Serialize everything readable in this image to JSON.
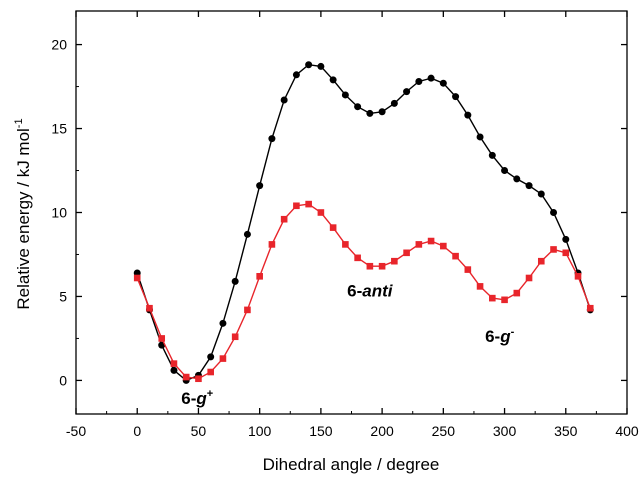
{
  "chart_data": {
    "type": "line",
    "title": "",
    "xlabel": "Dihedral angle / degree",
    "ylabel_main": "Relative energy / kJ mol",
    "ylabel_sup": "-1",
    "xlim": [
      -50,
      400
    ],
    "ylim": [
      -2,
      22
    ],
    "xticks": [
      -50,
      0,
      50,
      100,
      150,
      200,
      250,
      300,
      350,
      400
    ],
    "yticks": [
      0,
      5,
      10,
      15,
      20
    ],
    "grid": false,
    "legend": "none",
    "series": [
      {
        "color": "#000000",
        "marker": "circle",
        "x": [
          0,
          10,
          20,
          30,
          40,
          50,
          60,
          70,
          80,
          90,
          100,
          110,
          120,
          130,
          140,
          150,
          160,
          170,
          180,
          190,
          200,
          210,
          220,
          230,
          240,
          250,
          260,
          270,
          280,
          290,
          300,
          310,
          320,
          330,
          340,
          350,
          360,
          370
        ],
        "y": [
          6.4,
          4.2,
          2.1,
          0.6,
          0.0,
          0.3,
          1.4,
          3.4,
          5.9,
          8.7,
          11.6,
          14.4,
          16.7,
          18.2,
          18.8,
          18.7,
          17.9,
          17.0,
          16.3,
          15.9,
          16.0,
          16.5,
          17.2,
          17.8,
          18.0,
          17.7,
          16.9,
          15.8,
          14.5,
          13.4,
          12.5,
          12.0,
          11.6,
          11.1,
          10.0,
          8.4,
          6.4,
          4.2
        ]
      },
      {
        "color": "#e8252b",
        "marker": "square",
        "x": [
          0,
          10,
          20,
          30,
          40,
          50,
          60,
          70,
          80,
          90,
          100,
          110,
          120,
          130,
          140,
          150,
          160,
          170,
          180,
          190,
          200,
          210,
          220,
          230,
          240,
          250,
          260,
          270,
          280,
          290,
          300,
          310,
          320,
          330,
          340,
          350,
          360,
          370
        ],
        "y": [
          6.1,
          4.3,
          2.5,
          1.0,
          0.2,
          0.1,
          0.5,
          1.3,
          2.6,
          4.2,
          6.2,
          8.1,
          9.6,
          10.4,
          10.5,
          10.0,
          9.1,
          8.1,
          7.3,
          6.8,
          6.8,
          7.1,
          7.6,
          8.1,
          8.3,
          8.0,
          7.4,
          6.6,
          5.6,
          4.9,
          4.8,
          5.2,
          6.1,
          7.1,
          7.8,
          7.6,
          6.2,
          4.3
        ]
      }
    ],
    "annotations": [
      {
        "parts": [
          {
            "t": "6-",
            "style": "b"
          },
          {
            "t": "g",
            "style": "bi"
          },
          {
            "t": "+",
            "style": "sup"
          }
        ],
        "x": 49,
        "y": -1.4
      },
      {
        "parts": [
          {
            "t": "6-",
            "style": "b"
          },
          {
            "t": "anti",
            "style": "bi"
          }
        ],
        "x": 190,
        "y": 5.0
      },
      {
        "parts": [
          {
            "t": "6-",
            "style": "b"
          },
          {
            "t": "g",
            "style": "bi"
          },
          {
            "t": "-",
            "style": "sup"
          }
        ],
        "x": 296,
        "y": 2.3
      }
    ]
  }
}
